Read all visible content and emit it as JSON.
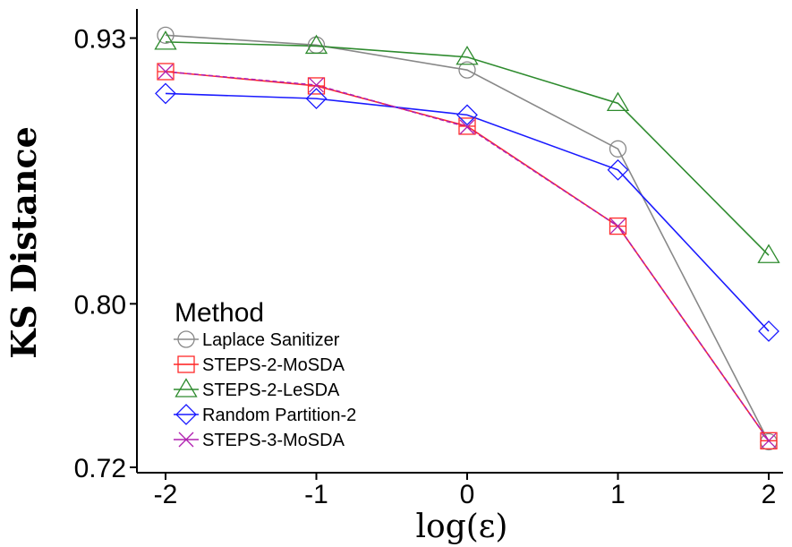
{
  "chart_data": {
    "type": "line",
    "xlabel": "log(ε)",
    "ylabel": "KS Distance",
    "x": [
      -2,
      -1,
      0,
      1,
      2
    ],
    "x_ticks": [
      "-2",
      "-1",
      "0",
      "1",
      "2"
    ],
    "y_ticks": [
      "0.93",
      "0.80",
      "0.72"
    ],
    "y_tick_values": [
      0.93,
      0.8,
      0.72
    ],
    "ylim": [
      0.7165,
      0.9425
    ],
    "xlim": [
      -2.1,
      2.1
    ],
    "grid": false,
    "legend": {
      "title": "Method",
      "placement": "bottom-left"
    },
    "series": [
      {
        "name": "Laplace Sanitizer",
        "color": "#888888",
        "marker": "circle",
        "values": [
          0.9314,
          0.9266,
          0.9144,
          0.8758,
          0.7325
        ]
      },
      {
        "name": "STEPS-2-MoSDA",
        "color": "#ff2a2a",
        "marker": "square",
        "values": [
          0.9136,
          0.9066,
          0.8869,
          0.838,
          0.733
        ]
      },
      {
        "name": "STEPS-2-LeSDA",
        "color": "#2e8b2e",
        "marker": "triangle",
        "values": [
          0.9281,
          0.9261,
          0.9207,
          0.8981,
          0.8237
        ]
      },
      {
        "name": "Random Partition-2",
        "color": "#1a1aff",
        "marker": "diamond",
        "values": [
          0.9029,
          0.9004,
          0.8924,
          0.8655,
          0.7866
        ]
      },
      {
        "name": "STEPS-3-MoSDA",
        "color": "#b020b0",
        "marker": "x",
        "values": [
          0.9136,
          0.907,
          0.8865,
          0.838,
          0.733
        ]
      }
    ]
  }
}
